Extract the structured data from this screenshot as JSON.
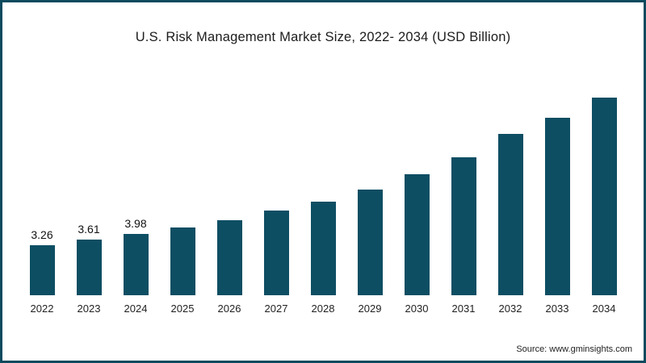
{
  "page": {
    "title": "U.S. Risk Management Market Size, 2022- 2034 (USD Billion)",
    "source": "Source: www.gminsights.com"
  },
  "chart_data": {
    "type": "bar",
    "title": "U.S. Risk Management Market Size, 2022- 2034 (USD Billion)",
    "categories": [
      "2022",
      "2023",
      "2024",
      "2025",
      "2026",
      "2027",
      "2028",
      "2029",
      "2030",
      "2031",
      "2032",
      "2033",
      "2034"
    ],
    "values": [
      3.26,
      3.61,
      3.98,
      4.4,
      4.9,
      5.5,
      6.1,
      6.9,
      7.9,
      9.0,
      10.5,
      11.6,
      12.9
    ],
    "data_labels": [
      "3.26",
      "3.61",
      "3.98",
      "",
      "",
      "",
      "",
      "",
      "",
      "",
      "",
      "",
      ""
    ],
    "bar_color": "#0d4e63",
    "frame_border_color": "#0d4a5e",
    "xlabel": "",
    "ylabel": "",
    "ylim": [
      0,
      13.5
    ],
    "grid": false,
    "legend": false,
    "source": "Source: www.gminsights.com"
  }
}
